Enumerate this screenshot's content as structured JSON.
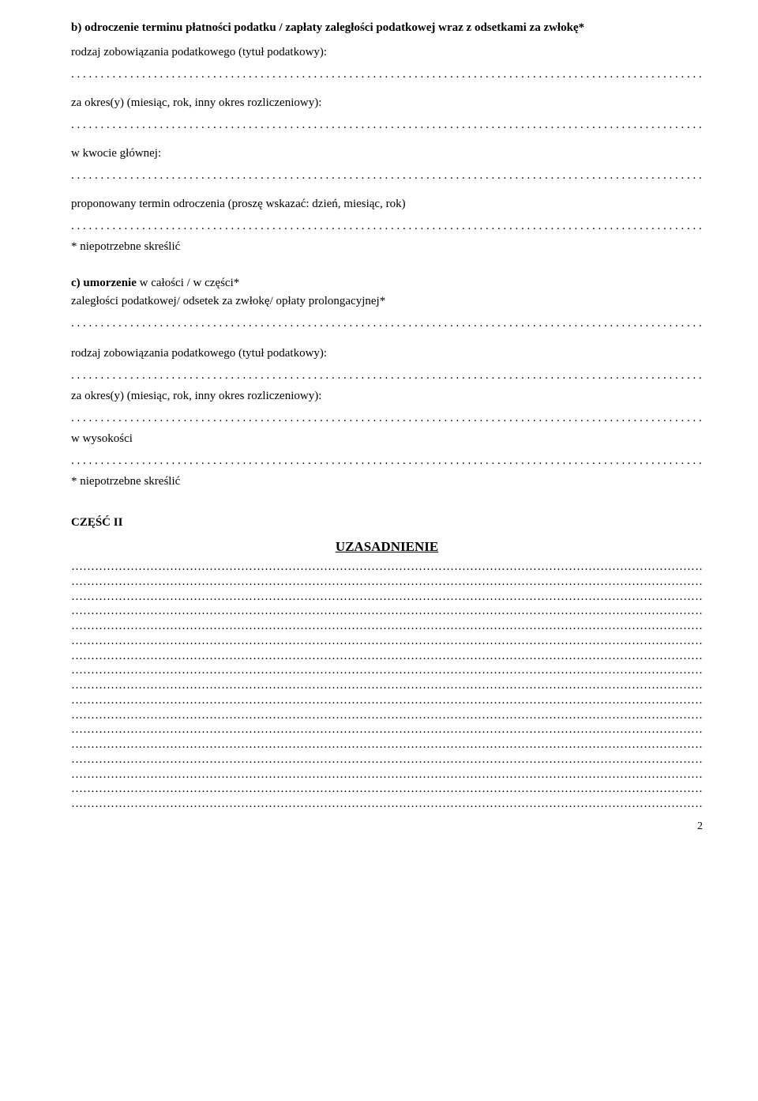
{
  "section_b": {
    "heading": "b) odroczenie terminu płatności podatku / zapłaty zaległości podatkowej wraz z odsetkami za zwłokę*",
    "label_rodzaj": "rodzaj zobowiązania podatkowego (tytuł podatkowy):",
    "label_okres": "za okres(y) (miesiąc, rok, inny okres rozliczeniowy):",
    "label_kwota": "w kwocie głównej:",
    "label_termin": "proponowany termin odroczenia (proszę wskazać: dzień, miesiąc, rok)",
    "note": "* niepotrzebne skreślić"
  },
  "section_c": {
    "heading_prefix": "c) umorzenie",
    "heading_rest": " w całości / w części*",
    "line2": "zaległości podatkowej/ odsetek za zwłokę/ opłaty prolongacyjnej*",
    "label_rodzaj": "rodzaj zobowiązania podatkowego (tytuł podatkowy):",
    "label_okres": "za okres(y) (miesiąc, rok, inny okres rozliczeniowy):",
    "label_wys": "w  wysokości",
    "note": "* niepotrzebne skreślić"
  },
  "part2": {
    "title": "CZĘŚĆ II",
    "heading": "UZASADNIENIE",
    "blank_lines": 17
  },
  "page_number": "2"
}
